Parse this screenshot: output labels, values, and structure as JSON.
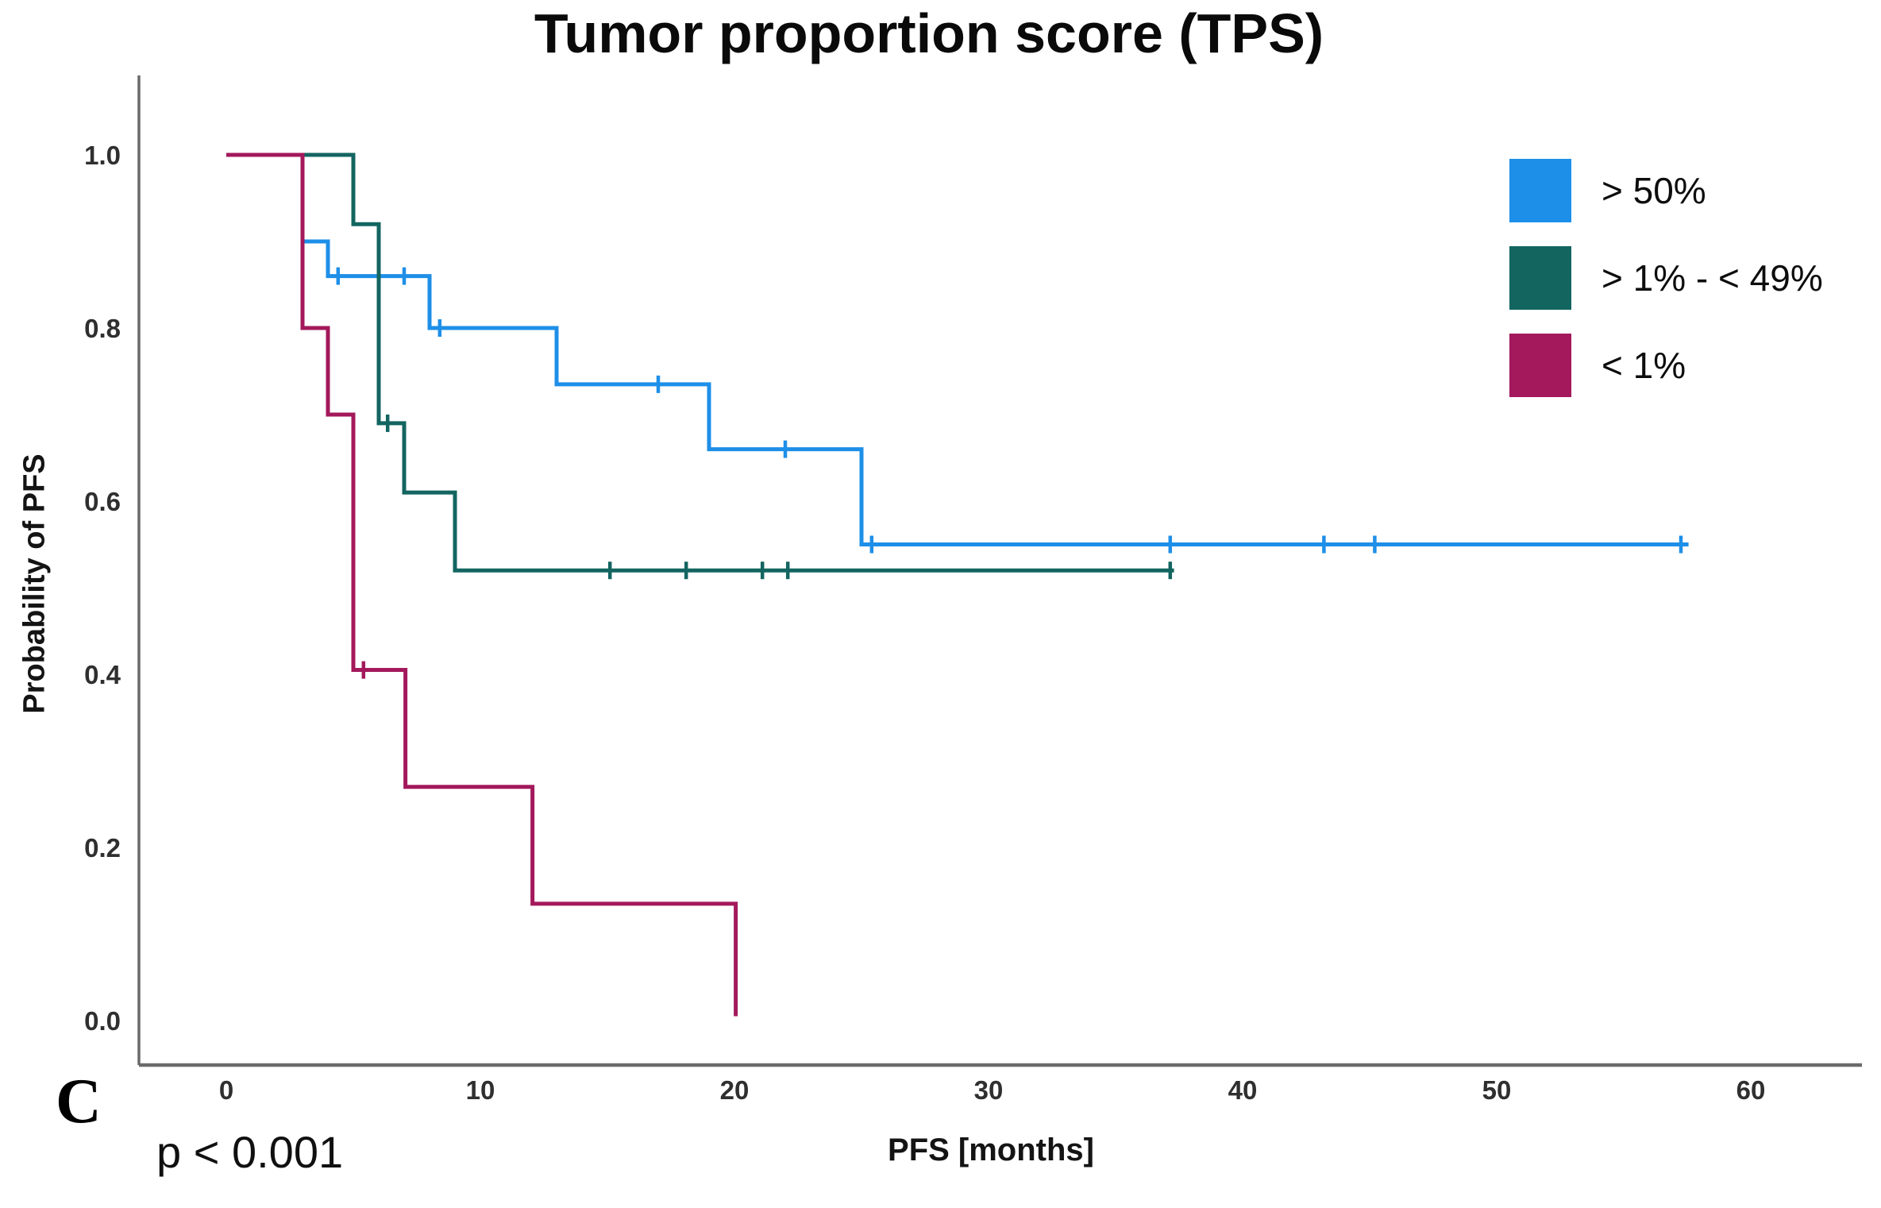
{
  "title": "Tumor proportion score (TPS)",
  "panel_label": "C",
  "p_value": "p < 0.001",
  "axes": {
    "x_label": "PFS [months]",
    "y_label": "Probability of PFS"
  },
  "legend": {
    "items": [
      {
        "id": "gt50",
        "label": "> 50%",
        "color": "#1E8FE8"
      },
      {
        "id": "1to49",
        "label": "> 1% - < 49%",
        "color": "#136560"
      },
      {
        "id": "lt1",
        "label": "< 1%",
        "color": "#A3195B"
      }
    ]
  },
  "chart_data": {
    "type": "line",
    "subtype": "kaplan-meier-step-function",
    "title": "Tumor proportion score (TPS)",
    "xlabel": "PFS [months]",
    "ylabel": "Probability of PFS",
    "xlim": [
      0,
      60
    ],
    "ylim": [
      0.0,
      1.0
    ],
    "x_ticks": [
      0,
      10,
      20,
      30,
      40,
      50,
      60
    ],
    "y_ticks": [
      1.0,
      0.8,
      0.6,
      0.4,
      0.2,
      0.0
    ],
    "grid": false,
    "legend_position": "upper right",
    "annotation_p_value": "p < 0.001",
    "axis_color": "#6a6a6a",
    "tick_label_color": "#2f2f2f",
    "series": [
      {
        "id": "gt50",
        "name": "> 50%",
        "color": "#1E8FE8",
        "start": [
          0,
          1.0
        ],
        "steps": [
          [
            3,
            0.9
          ],
          [
            4,
            0.86
          ],
          [
            8,
            0.8
          ],
          [
            13,
            0.735
          ],
          [
            19,
            0.66
          ],
          [
            25,
            0.55
          ]
        ],
        "end_time": 57.55,
        "censors": [
          [
            4.4,
            0.86
          ],
          [
            7,
            0.86
          ],
          [
            8.4,
            0.8
          ],
          [
            17,
            0.735
          ],
          [
            22,
            0.66
          ],
          [
            25.4,
            0.55
          ],
          [
            37.15,
            0.55
          ],
          [
            43.2,
            0.55
          ],
          [
            45.2,
            0.55
          ],
          [
            57.25,
            0.55
          ]
        ]
      },
      {
        "id": "1to49",
        "name": "> 1% - < 49%",
        "color": "#136560",
        "start": [
          0,
          1.0
        ],
        "steps": [
          [
            5,
            0.92
          ],
          [
            6,
            0.69
          ],
          [
            7,
            0.61
          ],
          [
            9,
            0.52
          ]
        ],
        "end_time": 37.3,
        "censors": [
          [
            6.35,
            0.69
          ],
          [
            15.1,
            0.52
          ],
          [
            18.1,
            0.52
          ],
          [
            21.1,
            0.52
          ],
          [
            22.1,
            0.52
          ],
          [
            37.15,
            0.52
          ]
        ]
      },
      {
        "id": "lt1",
        "name": "< 1%",
        "color": "#A3195B",
        "start": [
          0,
          1.0
        ],
        "steps": [
          [
            3,
            0.8
          ],
          [
            4,
            0.7
          ],
          [
            5,
            0.405
          ],
          [
            7.05,
            0.27
          ],
          [
            12.05,
            0.135
          ],
          [
            20.05,
            0.005
          ]
        ],
        "end_time": 20.05,
        "censors": [
          [
            5.4,
            0.405
          ]
        ]
      }
    ]
  }
}
